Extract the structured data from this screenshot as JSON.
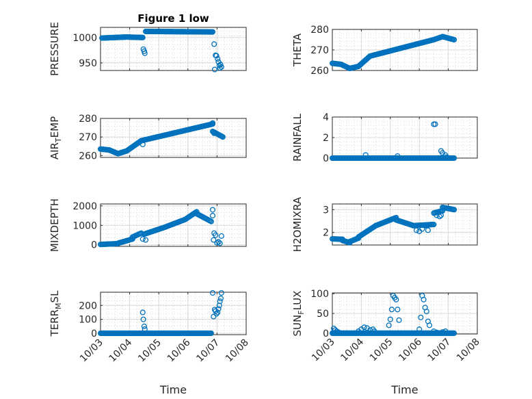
{
  "chart_data": [
    {
      "type": "scatter",
      "title": "Figure 1 low",
      "ylabel": {
        "main": "PRESSURE",
        "sub": ""
      },
      "xlabel": "",
      "xlim": [
        0,
        5
      ],
      "ylim": [
        935,
        1020
      ],
      "yticks": [
        950,
        1000
      ],
      "show_xticks": false,
      "grid": true,
      "segments": [
        {
          "x0": 0.05,
          "x1": 0.9,
          "y0": 999,
          "y1": 1001,
          "n": 40
        },
        {
          "x0": 0.9,
          "x1": 1.45,
          "y0": 1001,
          "y1": 1000,
          "n": 22
        },
        {
          "x0": 1.55,
          "x1": 3.85,
          "y0": 1012,
          "y1": 1011,
          "n": 90
        }
      ],
      "points": [
        [
          1.47,
          977
        ],
        [
          1.5,
          973
        ],
        [
          1.52,
          969
        ],
        [
          3.9,
          987
        ],
        [
          3.92,
          937
        ],
        [
          3.95,
          965
        ],
        [
          3.98,
          964
        ],
        [
          4.02,
          958
        ],
        [
          4.05,
          952
        ],
        [
          4.08,
          945
        ],
        [
          4.1,
          940
        ],
        [
          4.12,
          947
        ],
        [
          4.15,
          942
        ]
      ]
    },
    {
      "type": "scatter",
      "title": "",
      "ylabel": {
        "main": "THETA",
        "sub": ""
      },
      "xlabel": "",
      "xlim": [
        0,
        5
      ],
      "ylim": [
        260,
        280
      ],
      "yticks": [
        260,
        270,
        280
      ],
      "show_xticks": false,
      "grid": true,
      "segments": [
        {
          "x0": 0.0,
          "x1": 0.3,
          "y0": 263.5,
          "y1": 263,
          "n": 12
        },
        {
          "x0": 0.3,
          "x1": 0.6,
          "y0": 263,
          "y1": 261,
          "n": 12
        },
        {
          "x0": 0.6,
          "x1": 0.9,
          "y0": 261,
          "y1": 262,
          "n": 12
        },
        {
          "x0": 0.9,
          "x1": 1.3,
          "y0": 262,
          "y1": 267,
          "n": 16
        },
        {
          "x0": 1.3,
          "x1": 3.5,
          "y0": 267,
          "y1": 275,
          "n": 80
        },
        {
          "x0": 3.5,
          "x1": 3.8,
          "y0": 275,
          "y1": 276.5,
          "n": 10
        },
        {
          "x0": 3.8,
          "x1": 4.2,
          "y0": 276.5,
          "y1": 275,
          "n": 14
        }
      ],
      "points": []
    },
    {
      "type": "scatter",
      "title": "",
      "ylabel": {
        "main": "AIR",
        "sub": "T",
        "rest": "EMP"
      },
      "xlabel": "",
      "xlim": [
        0,
        5
      ],
      "ylim": [
        259,
        280
      ],
      "yticks": [
        260,
        270,
        280
      ],
      "show_xticks": false,
      "grid": true,
      "segments": [
        {
          "x0": 0.0,
          "x1": 0.3,
          "y0": 263.5,
          "y1": 263,
          "n": 12
        },
        {
          "x0": 0.3,
          "x1": 0.6,
          "y0": 263,
          "y1": 261,
          "n": 12
        },
        {
          "x0": 0.6,
          "x1": 0.9,
          "y0": 261,
          "y1": 262.5,
          "n": 12
        },
        {
          "x0": 0.9,
          "x1": 1.4,
          "y0": 262.5,
          "y1": 268,
          "n": 18
        },
        {
          "x0": 1.4,
          "x1": 3.85,
          "y0": 268,
          "y1": 277,
          "n": 90
        },
        {
          "x0": 3.85,
          "x1": 4.2,
          "y0": 273,
          "y1": 270,
          "n": 14
        }
      ],
      "points": [
        [
          1.45,
          266
        ],
        [
          3.9,
          272
        ],
        [
          3.85,
          277.5
        ]
      ]
    },
    {
      "type": "scatter",
      "title": "",
      "ylabel": {
        "main": "RAINFALL",
        "sub": ""
      },
      "xlabel": "",
      "xlim": [
        0,
        5
      ],
      "ylim": [
        0,
        4
      ],
      "yticks": [
        0,
        2,
        4
      ],
      "show_xticks": false,
      "grid": true,
      "segments": [
        {
          "x0": 0.0,
          "x1": 4.2,
          "y0": 0,
          "y1": 0,
          "n": 160
        }
      ],
      "points": [
        [
          1.15,
          0.3
        ],
        [
          2.25,
          0.2
        ],
        [
          3.5,
          3.3
        ],
        [
          3.55,
          3.3
        ],
        [
          3.75,
          0.7
        ],
        [
          3.8,
          0.5
        ],
        [
          3.9,
          0.3
        ],
        [
          3.95,
          0.1
        ]
      ]
    },
    {
      "type": "scatter",
      "title": "",
      "ylabel": {
        "main": "MIXDEPTH",
        "sub": ""
      },
      "xlabel": "",
      "xlim": [
        0,
        5
      ],
      "ylim": [
        -80,
        2100
      ],
      "yticks": [
        0,
        1000,
        2000
      ],
      "show_xticks": false,
      "grid": true,
      "segments": [
        {
          "x0": 0.0,
          "x1": 0.6,
          "y0": 20,
          "y1": 60,
          "n": 20
        },
        {
          "x0": 0.6,
          "x1": 1.1,
          "y0": 80,
          "y1": 300,
          "n": 18
        },
        {
          "x0": 1.1,
          "x1": 1.4,
          "y0": 400,
          "y1": 600,
          "n": 10
        },
        {
          "x0": 1.5,
          "x1": 2.2,
          "y0": 550,
          "y1": 900,
          "n": 24
        },
        {
          "x0": 2.2,
          "x1": 2.9,
          "y0": 900,
          "y1": 1300,
          "n": 24
        },
        {
          "x0": 2.9,
          "x1": 3.3,
          "y0": 1300,
          "y1": 1700,
          "n": 14
        },
        {
          "x0": 3.3,
          "x1": 3.8,
          "y0": 1600,
          "y1": 1200,
          "n": 16
        }
      ],
      "points": [
        [
          1.45,
          300
        ],
        [
          1.55,
          250
        ],
        [
          3.85,
          1800
        ],
        [
          3.85,
          1500
        ],
        [
          3.88,
          250
        ],
        [
          3.9,
          600
        ],
        [
          3.95,
          500
        ],
        [
          4.0,
          100
        ],
        [
          4.05,
          150
        ],
        [
          4.1,
          80
        ],
        [
          4.15,
          450
        ]
      ]
    },
    {
      "type": "scatter",
      "title": "",
      "ylabel": {
        "main": "H2OMIXRA",
        "sub": ""
      },
      "xlabel": "",
      "xlim": [
        0,
        5
      ],
      "ylim": [
        1.45,
        3.25
      ],
      "yticks": [
        2,
        3
      ],
      "show_xticks": false,
      "grid": true,
      "segments": [
        {
          "x0": 0.0,
          "x1": 0.35,
          "y0": 1.72,
          "y1": 1.7,
          "n": 12
        },
        {
          "x0": 0.35,
          "x1": 0.6,
          "y0": 1.65,
          "y1": 1.55,
          "n": 10
        },
        {
          "x0": 0.6,
          "x1": 0.9,
          "y0": 1.6,
          "y1": 1.75,
          "n": 10
        },
        {
          "x0": 0.9,
          "x1": 1.5,
          "y0": 1.8,
          "y1": 2.3,
          "n": 22
        },
        {
          "x0": 1.5,
          "x1": 2.2,
          "y0": 2.3,
          "y1": 2.65,
          "n": 26
        },
        {
          "x0": 2.2,
          "x1": 2.8,
          "y0": 2.55,
          "y1": 2.3,
          "n": 20
        },
        {
          "x0": 2.8,
          "x1": 3.5,
          "y0": 2.3,
          "y1": 2.35,
          "n": 22
        },
        {
          "x0": 3.5,
          "x1": 3.8,
          "y0": 2.85,
          "y1": 2.95,
          "n": 10
        },
        {
          "x0": 3.8,
          "x1": 4.2,
          "y0": 3.1,
          "y1": 3.0,
          "n": 14
        }
      ],
      "points": [
        [
          2.9,
          2.1
        ],
        [
          3.0,
          2.05
        ],
        [
          3.1,
          2.15
        ],
        [
          3.2,
          2.3
        ],
        [
          3.3,
          2.1
        ],
        [
          3.4,
          2.35
        ],
        [
          3.6,
          2.75
        ],
        [
          3.7,
          2.7
        ],
        [
          3.75,
          2.75
        ]
      ]
    },
    {
      "type": "scatter",
      "title": "",
      "ylabel": {
        "main": "TERR",
        "sub": "M",
        "rest": "SL"
      },
      "xlabel": "Time",
      "xlim": [
        0,
        5
      ],
      "ylim": [
        -10,
        295
      ],
      "yticks": [
        0,
        100,
        200
      ],
      "xticks": [
        0,
        1,
        2,
        3,
        4,
        5
      ],
      "xticklabels": [
        "10/03",
        "10/04",
        "10/05",
        "10/06",
        "10/07",
        "10/08"
      ],
      "show_xticks": true,
      "grid": true,
      "segments": [
        {
          "x0": 0.0,
          "x1": 3.8,
          "y0": 0,
          "y1": 0,
          "n": 150
        }
      ],
      "points": [
        [
          1.45,
          150
        ],
        [
          1.47,
          100
        ],
        [
          1.5,
          50
        ],
        [
          1.52,
          30
        ],
        [
          3.85,
          290
        ],
        [
          3.88,
          120
        ],
        [
          3.92,
          170
        ],
        [
          3.95,
          160
        ],
        [
          3.98,
          140
        ],
        [
          4.02,
          150
        ],
        [
          4.05,
          175
        ],
        [
          4.08,
          200
        ],
        [
          4.1,
          230
        ],
        [
          4.13,
          250
        ],
        [
          4.15,
          290
        ]
      ]
    },
    {
      "type": "scatter",
      "title": "",
      "ylabel": {
        "main": "SUN",
        "sub": "F",
        "rest": "LUX"
      },
      "xlabel": "Time",
      "xlim": [
        0,
        5
      ],
      "ylim": [
        -2,
        102
      ],
      "yticks": [
        0,
        50,
        100
      ],
      "xticks": [
        0,
        1,
        2,
        3,
        4,
        5
      ],
      "xticklabels": [
        "10/03",
        "10/04",
        "10/05",
        "10/06",
        "10/07",
        "10/08"
      ],
      "show_xticks": true,
      "grid": true,
      "segments": [
        {
          "x0": 0.0,
          "x1": 4.2,
          "y0": 0,
          "y1": 0,
          "n": 150
        }
      ],
      "points": [
        [
          0.05,
          12
        ],
        [
          0.1,
          8
        ],
        [
          0.15,
          5
        ],
        [
          0.2,
          3
        ],
        [
          0.9,
          5
        ],
        [
          1.0,
          10
        ],
        [
          1.1,
          15
        ],
        [
          1.2,
          13
        ],
        [
          1.3,
          8
        ],
        [
          1.4,
          10
        ],
        [
          1.45,
          5
        ],
        [
          2.05,
          60
        ],
        [
          2.1,
          95
        ],
        [
          2.15,
          90
        ],
        [
          2.2,
          85
        ],
        [
          2.25,
          60
        ],
        [
          2.3,
          33
        ],
        [
          2.0,
          35
        ],
        [
          1.95,
          20
        ],
        [
          3.05,
          40
        ],
        [
          3.1,
          95
        ],
        [
          3.15,
          85
        ],
        [
          3.2,
          65
        ],
        [
          3.25,
          55
        ],
        [
          3.3,
          30
        ],
        [
          3.35,
          20
        ],
        [
          3.0,
          10
        ],
        [
          3.5,
          5
        ],
        [
          3.6,
          2
        ],
        [
          3.8,
          3
        ],
        [
          3.9,
          5
        ]
      ]
    }
  ]
}
